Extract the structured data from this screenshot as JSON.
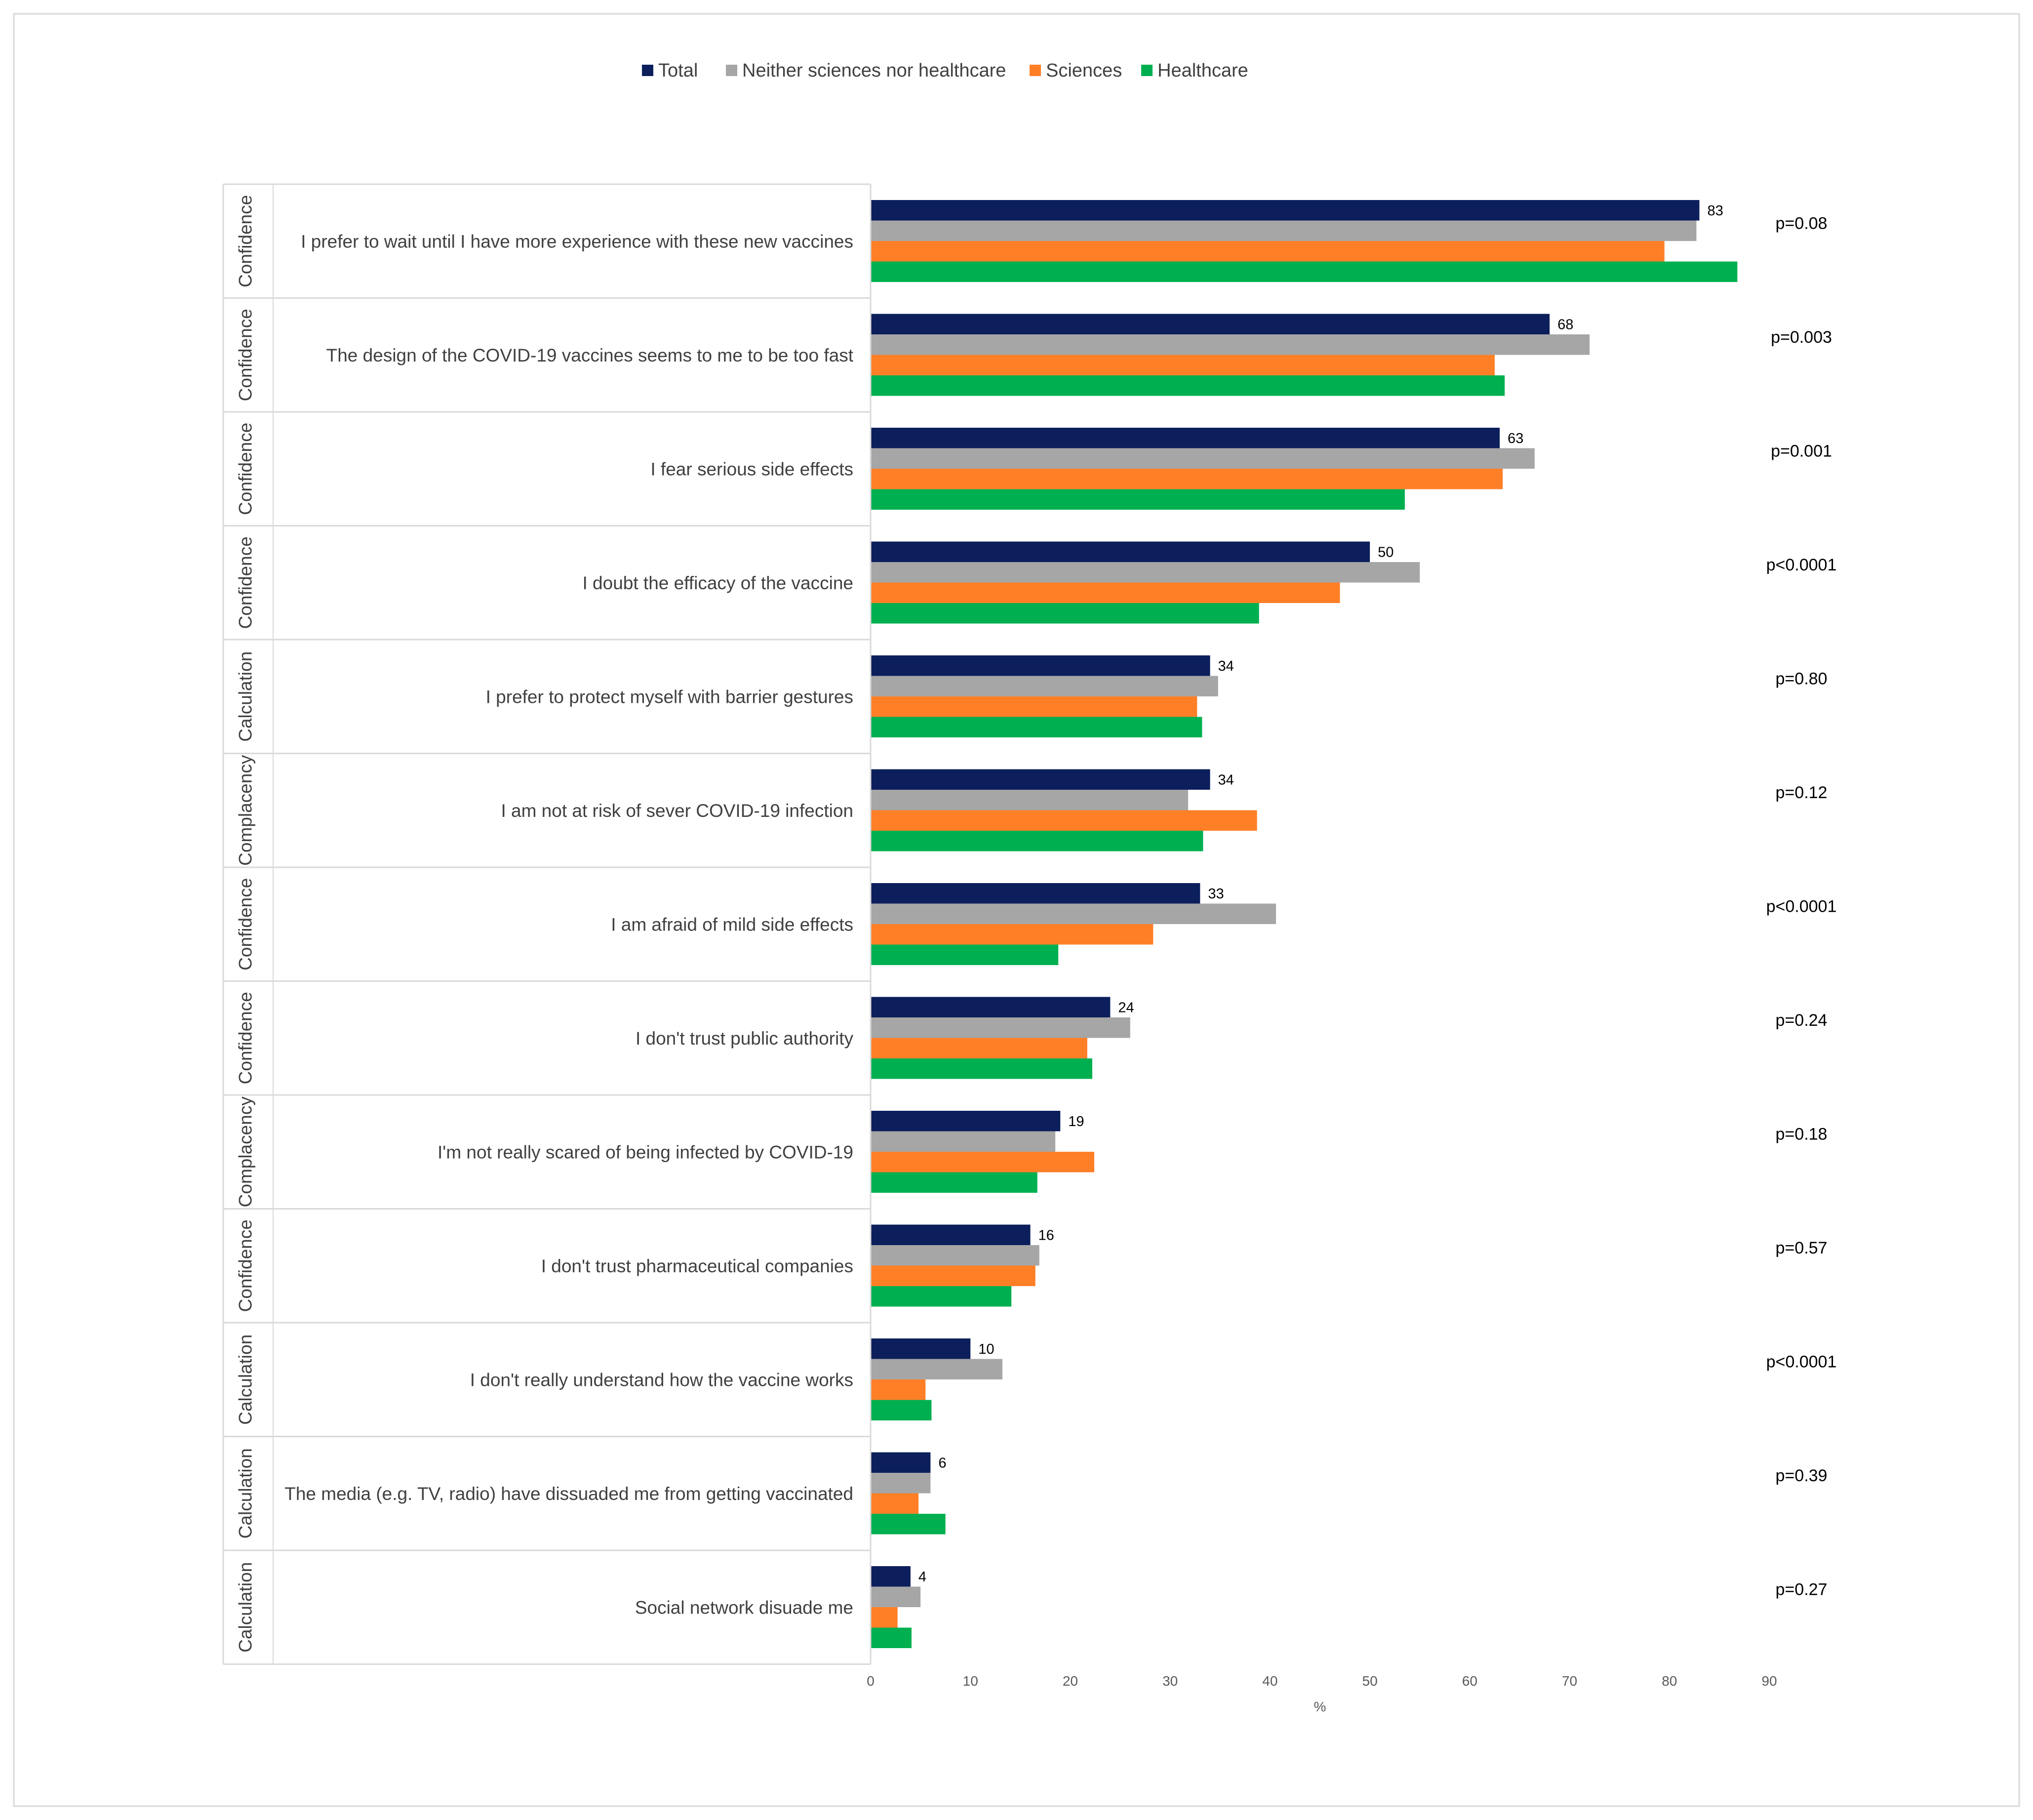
{
  "chart_data": {
    "type": "bar",
    "orientation": "horizontal",
    "title": "",
    "xlabel": "%",
    "ylabel": "",
    "xlim": [
      0,
      90
    ],
    "xticks": [
      0,
      10,
      20,
      30,
      40,
      50,
      60,
      70,
      80,
      90
    ],
    "grid": false,
    "legend_position": "top-center",
    "categories": [
      "I prefer to wait until I have more experience with these new vaccines",
      "The design of the COVID-19 vaccines seems to me to be too fast",
      "I fear serious side effects",
      "I doubt the efficacy of the vaccine",
      "I prefer to protect myself with barrier gestures",
      "I am not at risk of sever COVID-19 infection",
      "I am afraid of mild side effects",
      "I don't trust public authority",
      "I'm not really scared of being infected by COVID-19",
      "I don't trust pharmaceutical companies",
      "I don't really understand how the vaccine works",
      "The media (e.g. TV, radio) have dissuaded me from getting vaccinated",
      "Social network disuade me"
    ],
    "groups": [
      "Confidence",
      "Confidence",
      "Confidence",
      "Confidence",
      "Calculation",
      "Complacency",
      "Confidence",
      "Confidence",
      "Complacency",
      "Confidence",
      "Calculation",
      "Calculation",
      "Calculation"
    ],
    "p_values": [
      "p=0.08",
      "p=0.003",
      "p=0.001",
      "p<0.0001",
      "p=0.80",
      "p=0.12",
      "p<0.0001",
      "p=0.24",
      "p=0.18",
      "p=0.57",
      "p<0.0001",
      "p=0.39",
      "p=0.27"
    ],
    "total_labels": [
      "83",
      "68",
      "63",
      "50",
      "34",
      "34",
      "33",
      "24",
      "19",
      "16",
      "10",
      "6",
      "4"
    ],
    "series": [
      {
        "name": "Total",
        "color": "#0c1f5c",
        "values": [
          83,
          68,
          63,
          50,
          34,
          34,
          33,
          24,
          19,
          16,
          10,
          6,
          4
        ]
      },
      {
        "name": "Neither sciences nor healthcare",
        "color": "#a6a6a6",
        "values": [
          82.7,
          72,
          66.5,
          55,
          34.8,
          31.8,
          40.6,
          26,
          18.5,
          16.9,
          13.2,
          6,
          5
        ]
      },
      {
        "name": "Sciences",
        "color": "#ff7f27",
        "values": [
          79.5,
          62.5,
          63.3,
          47,
          32.7,
          38.7,
          28.3,
          21.7,
          22.4,
          16.5,
          5.5,
          4.8,
          2.7
        ]
      },
      {
        "name": "Healthcare",
        "color": "#00b050",
        "values": [
          86.8,
          63.5,
          53.5,
          38.9,
          33.2,
          33.3,
          18.8,
          22.2,
          16.7,
          14.1,
          6.1,
          7.5,
          4.1
        ]
      }
    ]
  }
}
